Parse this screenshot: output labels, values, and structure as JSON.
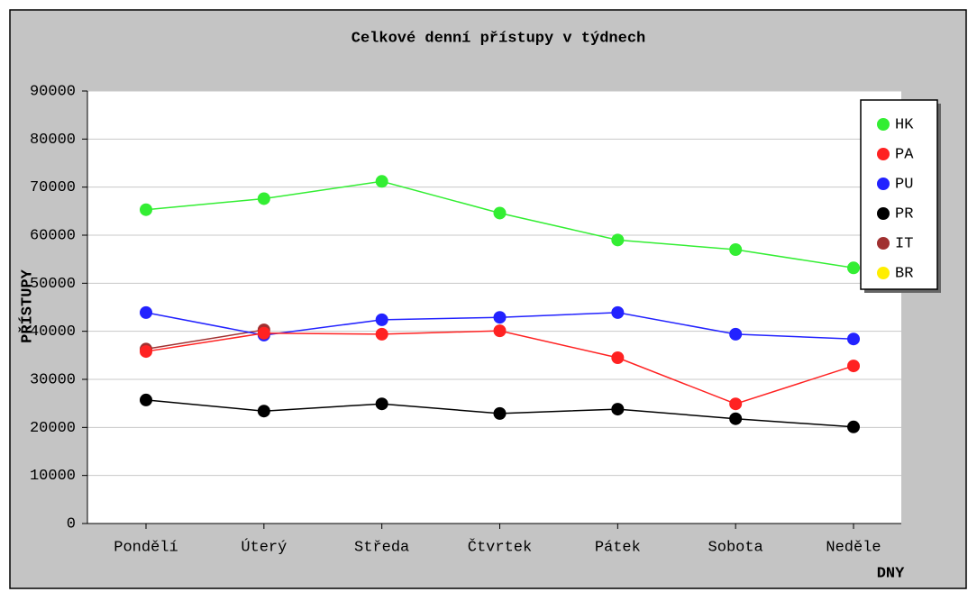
{
  "chart_data": {
    "type": "line",
    "title": "Celkové denní přístupy v týdnech",
    "xlabel": "DNY",
    "ylabel": "PŘÍSTUPY",
    "categories": [
      "Pondělí",
      "Úterý",
      "Středa",
      "Čtvrtek",
      "Pátek",
      "Sobota",
      "Neděle"
    ],
    "series": [
      {
        "name": "HK",
        "color": "#33ee33",
        "values": [
          65300,
          67600,
          71200,
          64600,
          59000,
          57000,
          53200
        ]
      },
      {
        "name": "PA",
        "color": "#ff2222",
        "values": [
          35800,
          39600,
          39400,
          40100,
          34500,
          24900,
          32800
        ]
      },
      {
        "name": "PU",
        "color": "#2222ff",
        "values": [
          43900,
          39200,
          42400,
          42900,
          43900,
          39400,
          38400
        ]
      },
      {
        "name": "PR",
        "color": "#000000",
        "values": [
          25700,
          23400,
          24900,
          22900,
          23800,
          21800,
          20100
        ]
      },
      {
        "name": "IT",
        "color": "#a03030",
        "values": [
          36300,
          40300,
          null,
          null,
          null,
          null,
          null
        ]
      },
      {
        "name": "BR",
        "color": "#ffee00",
        "values": [
          null,
          null,
          null,
          null,
          null,
          null,
          null
        ]
      }
    ],
    "ylim": [
      0,
      90000
    ],
    "yticks": [
      0,
      10000,
      20000,
      30000,
      40000,
      50000,
      60000,
      70000,
      80000,
      90000
    ],
    "grid": true,
    "legend": "upper right"
  }
}
